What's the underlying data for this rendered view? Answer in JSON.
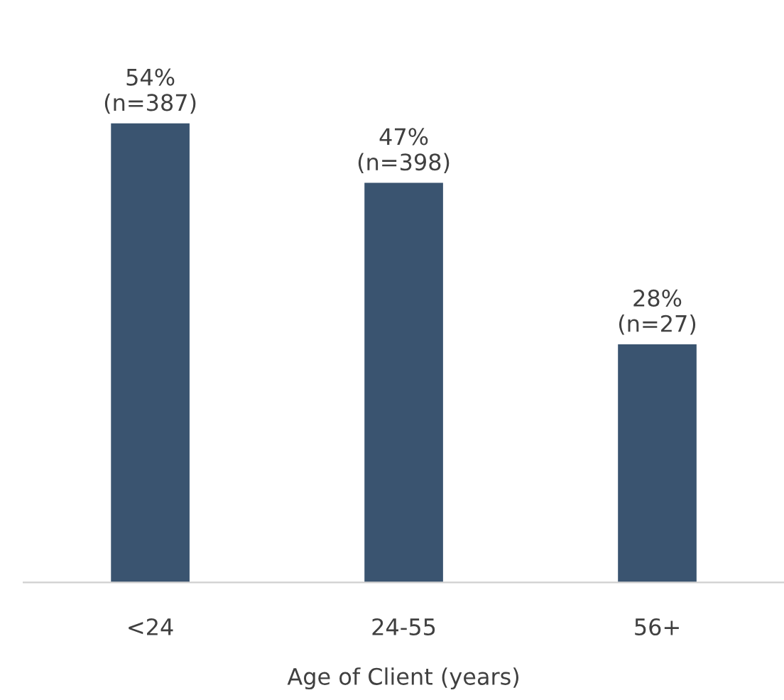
{
  "chart_data": {
    "type": "bar",
    "xlabel": "Age of Client (years)",
    "categories": [
      "<24",
      "24-55",
      "56+"
    ],
    "values": [
      54,
      47,
      28
    ],
    "value_labels": [
      "54%\n(n=387)",
      "47%\n(n=398)",
      "28%\n(n=27)"
    ],
    "color": "#3a5470",
    "tick_labels": "x",
    "grid": false,
    "legend": false
  }
}
